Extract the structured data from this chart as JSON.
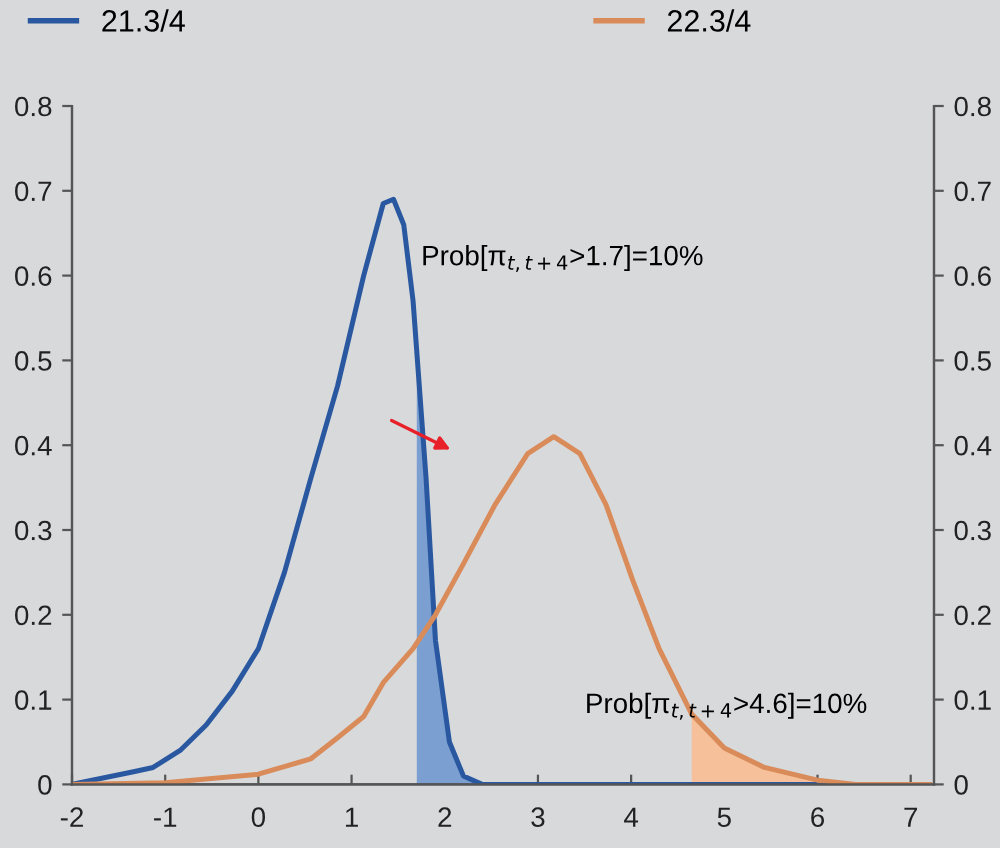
{
  "chart_data": {
    "type": "line",
    "series": [
      {
        "name": "21.3/4",
        "color": "#2a58a0",
        "x": [
          -2,
          -1.34,
          -1.13,
          -0.84,
          -0.56,
          -0.28,
          0,
          0.28,
          0.56,
          0.85,
          1.13,
          1.34,
          1.45,
          1.56,
          1.66,
          1.8,
          1.9,
          2.05,
          2.2,
          2.4,
          3,
          4,
          5,
          6,
          7.2
        ],
        "values": [
          0,
          0.015,
          0.02,
          0.04,
          0.07,
          0.11,
          0.16,
          0.25,
          0.36,
          0.47,
          0.6,
          0.685,
          0.69,
          0.66,
          0.57,
          0.36,
          0.17,
          0.05,
          0.01,
          0,
          0,
          0,
          0,
          0,
          0
        ]
      },
      {
        "name": "22.3/4",
        "color": "#d98b5a",
        "x": [
          -2,
          -1,
          0,
          0.56,
          0.85,
          1.13,
          1.34,
          1.66,
          1.9,
          2.2,
          2.54,
          2.89,
          3.17,
          3.45,
          3.73,
          4.02,
          4.3,
          4.65,
          5.0,
          5.43,
          6.0,
          6.41,
          7.2
        ],
        "values": [
          0,
          0.002,
          0.012,
          0.03,
          0.055,
          0.08,
          0.12,
          0.16,
          0.2,
          0.26,
          0.33,
          0.39,
          0.41,
          0.39,
          0.33,
          0.24,
          0.16,
          0.083,
          0.043,
          0.02,
          0.005,
          0,
          0
        ]
      },
      {
        "type": "area",
        "color": "#7b9fd0",
        "x": [
          1.7,
          1.8,
          1.9,
          2.05,
          2.2,
          2.4
        ],
        "values": [
          0.54,
          0.36,
          0.17,
          0.05,
          0.01,
          0
        ]
      },
      {
        "type": "area",
        "color": "#f5c09a",
        "x": [
          4.65,
          5.0,
          5.43,
          6.0,
          6.41
        ],
        "values": [
          0.083,
          0.043,
          0.02,
          0.005,
          0
        ]
      }
    ],
    "annotations": [
      "Prob[π$_{t,t+4}$>1.7]=10%",
      "Prob[π$_{t,t+4}$>4.6]=10%"
    ],
    "xlim": [
      -2,
      7.25
    ],
    "xticks": [
      -2,
      -1,
      0,
      1,
      2,
      3,
      4,
      5,
      6,
      7
    ],
    "ylim": [
      0,
      0.8
    ],
    "yticks": [
      0,
      0.1,
      0.2,
      0.3,
      0.4,
      0.5,
      0.6,
      0.7,
      0.8
    ],
    "y2lim": [
      0,
      0.8
    ],
    "y2ticks": [
      0,
      0.1,
      0.2,
      0.3,
      0.4,
      0.5,
      0.6,
      0.7,
      0.8
    ],
    "legend": "top left",
    "grid": false
  }
}
